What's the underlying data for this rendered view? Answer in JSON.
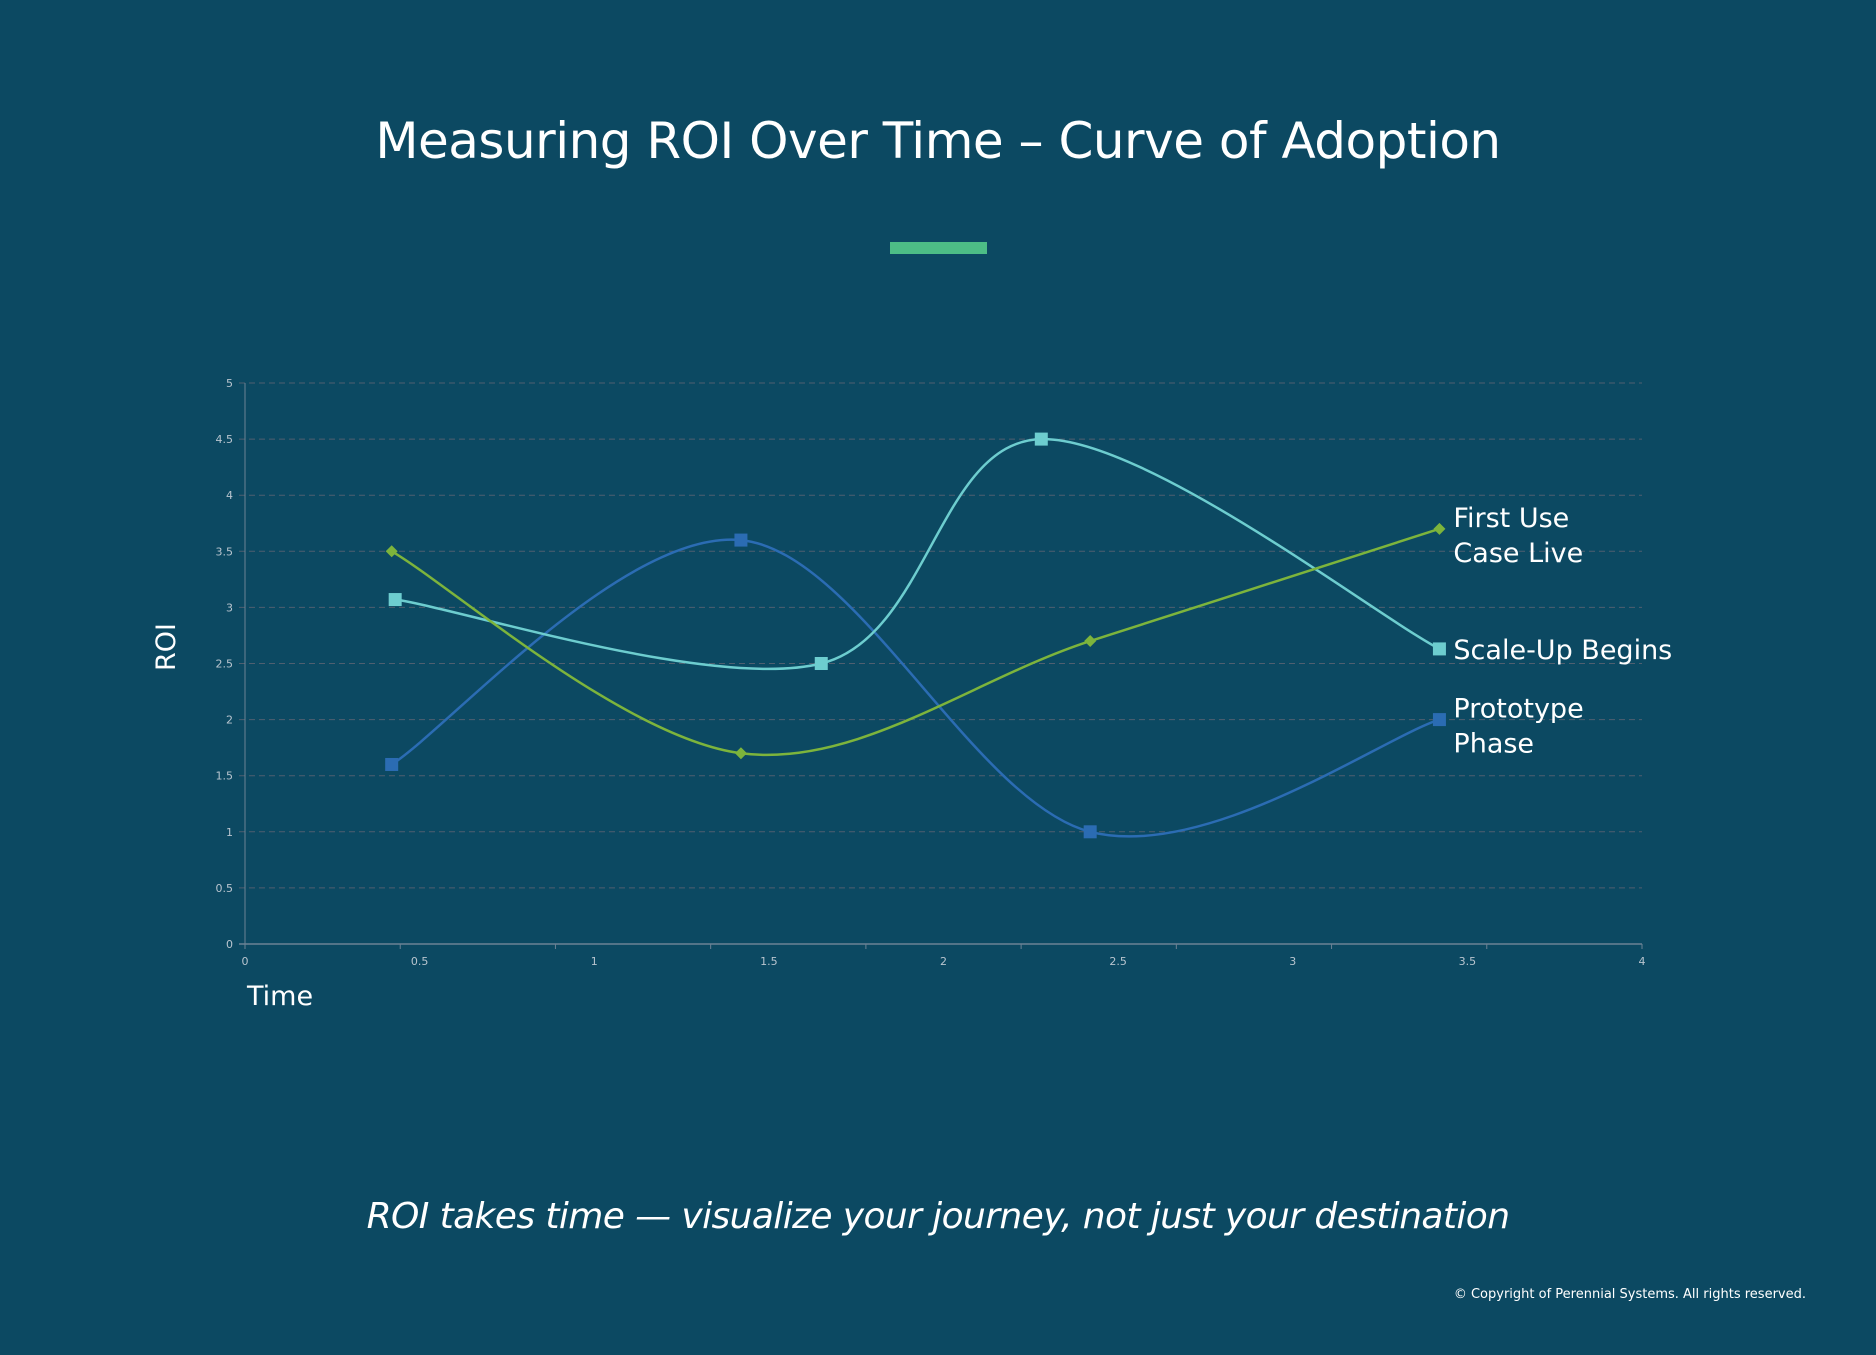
{
  "page": {
    "title": "Measuring ROI Over Time – Curve of Adoption",
    "subtitle": "ROI takes time — visualize your journey, not just your destination",
    "copyright": "© Copyright of Perennial Systems. All rights reserved.",
    "accent_color": "#4dbd86",
    "background_color": "#0c4962"
  },
  "chart_data": {
    "type": "line",
    "title": "Measuring ROI Over Time – Curve of Adoption",
    "xlabel": "Time",
    "ylabel": "ROI",
    "xlim": [
      0,
      4
    ],
    "ylim": [
      0,
      5
    ],
    "x_ticks": [
      "0",
      "0.5",
      "1",
      "1.5",
      "2",
      "2.5",
      "3",
      "3.5",
      "4"
    ],
    "y_ticks": [
      "0",
      "0.5",
      "1",
      "1.5",
      "2",
      "2.5",
      "3",
      "3.5",
      "4",
      "4.5",
      "5"
    ],
    "grid": true,
    "legend": "inline-right",
    "smooth": true,
    "series": [
      {
        "name": "Prototype Phase",
        "label_lines": [
          "Prototype",
          "Phase"
        ],
        "color": "#2b6cb3",
        "marker": "square",
        "x": [
          0.42,
          1.42,
          2.42,
          3.42
        ],
        "y": [
          1.6,
          3.6,
          1.0,
          2.0
        ]
      },
      {
        "name": "Scale-Up Begins",
        "label_lines": [
          "Scale-Up Begins"
        ],
        "color": "#6dcdcf",
        "marker": "square",
        "x": [
          0.43,
          1.65,
          2.28,
          3.42
        ],
        "y": [
          3.07,
          2.5,
          4.5,
          2.63
        ]
      },
      {
        "name": "First Use Case Live",
        "label_lines": [
          "First Use",
          "Case Live"
        ],
        "color": "#7db43c",
        "marker": "diamond",
        "x": [
          0.42,
          1.42,
          2.42,
          3.42
        ],
        "y": [
          3.5,
          1.7,
          2.7,
          3.7
        ]
      }
    ]
  }
}
